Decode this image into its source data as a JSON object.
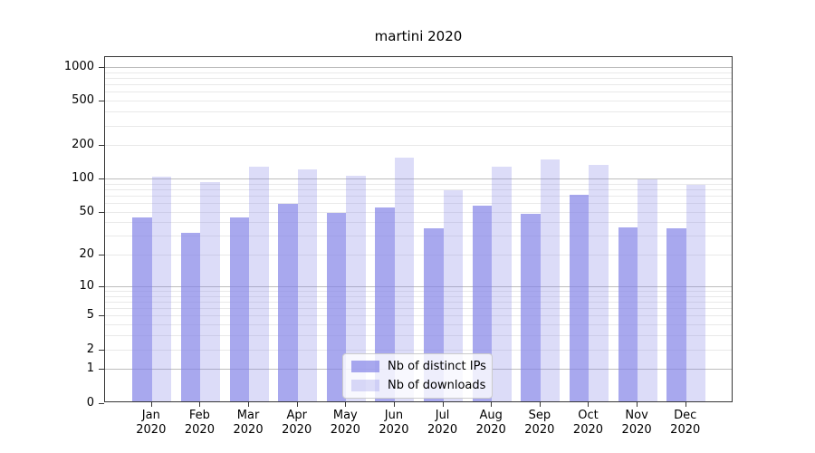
{
  "chart_data": {
    "type": "bar",
    "title": "martini 2020",
    "categories": [
      "Jan",
      "Feb",
      "Mar",
      "Apr",
      "May",
      "Jun",
      "Jul",
      "Aug",
      "Sep",
      "Oct",
      "Nov",
      "Dec"
    ],
    "category_year": "2020",
    "series": [
      {
        "name": "Nb of distinct IPs",
        "color": "rgba(131,131,231,0.7)",
        "values": [
          44,
          32,
          44,
          59,
          49,
          55,
          35,
          57,
          48,
          71,
          36,
          35
        ]
      },
      {
        "name": "Nb of downloads",
        "color": "rgba(131,131,231,0.28)",
        "values": [
          104,
          92,
          128,
          120,
          105,
          155,
          79,
          128,
          148,
          132,
          99,
          88
        ]
      }
    ],
    "y_axis": {
      "scale": "log1p",
      "tick_values": [
        0,
        1,
        2,
        5,
        10,
        20,
        50,
        100,
        200,
        500,
        1000
      ],
      "tick_labels": [
        "0",
        "1",
        "2",
        "5",
        "10",
        "20",
        "50",
        "100",
        "200",
        "500",
        "1000"
      ],
      "major_gridlines": [
        1,
        10,
        100,
        1000
      ],
      "range": [
        0,
        1100
      ],
      "grid": "on"
    },
    "legend": {
      "position": "bottom-center",
      "entries": [
        "Nb of distinct IPs",
        "Nb of downloads"
      ]
    },
    "colors": {
      "bar_base": "#8383e7",
      "grid_major": "#bdbdbd",
      "grid_minor": "#e9e9e9",
      "spine": "#363636"
    }
  }
}
